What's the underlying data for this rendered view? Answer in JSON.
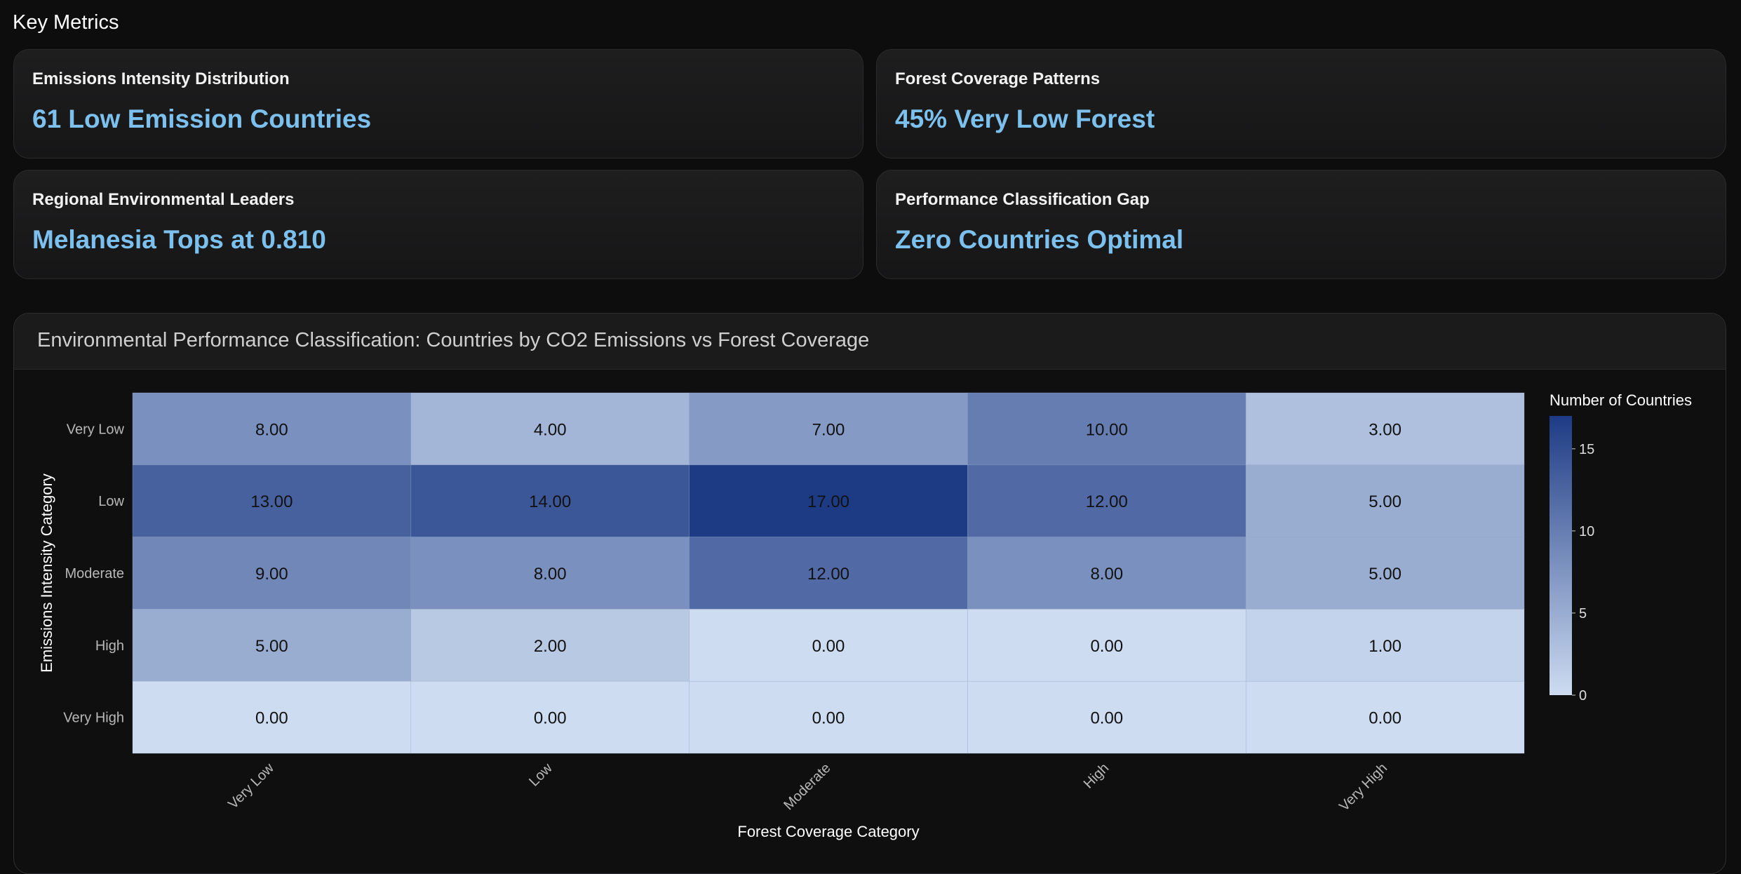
{
  "section": {
    "title": "Key Metrics"
  },
  "metrics": [
    {
      "label": "Emissions Intensity Distribution",
      "value": "61 Low Emission Countries"
    },
    {
      "label": "Forest Coverage Patterns",
      "value": "45% Very Low Forest"
    },
    {
      "label": "Regional Environmental Leaders",
      "value": "Melanesia Tops at 0.810"
    },
    {
      "label": "Performance Classification Gap",
      "value": "Zero Countries Optimal"
    }
  ],
  "chart": {
    "panel_title": "Environmental Performance Classification: Countries by CO2 Emissions vs Forest Coverage"
  },
  "chart_data": {
    "type": "heatmap",
    "title": "Environmental Performance Classification: Countries by CO2 Emissions vs Forest Coverage",
    "xlabel": "Forest Coverage Category",
    "ylabel": "Emissions Intensity Category",
    "x_categories": [
      "Very Low",
      "Low",
      "Moderate",
      "High",
      "Very High"
    ],
    "y_categories": [
      "Very Low",
      "Low",
      "Moderate",
      "High",
      "Very High"
    ],
    "values": [
      [
        8,
        4,
        7,
        10,
        3
      ],
      [
        13,
        14,
        17,
        12,
        5
      ],
      [
        9,
        8,
        12,
        8,
        5
      ],
      [
        5,
        2,
        0,
        0,
        1
      ],
      [
        0,
        0,
        0,
        0,
        0
      ]
    ],
    "value_format": "fixed-2",
    "colorbar": {
      "title": "Number of Countries",
      "range": [
        0,
        17
      ],
      "ticks": [
        0,
        5,
        10,
        15
      ],
      "color_low": "#cddcf1",
      "color_high": "#1d3b85"
    },
    "grid": false,
    "legend": "right"
  },
  "colors": {
    "background": "#0d0d0d",
    "accent": "#7cc0ee",
    "card": "#1b1b1c"
  }
}
